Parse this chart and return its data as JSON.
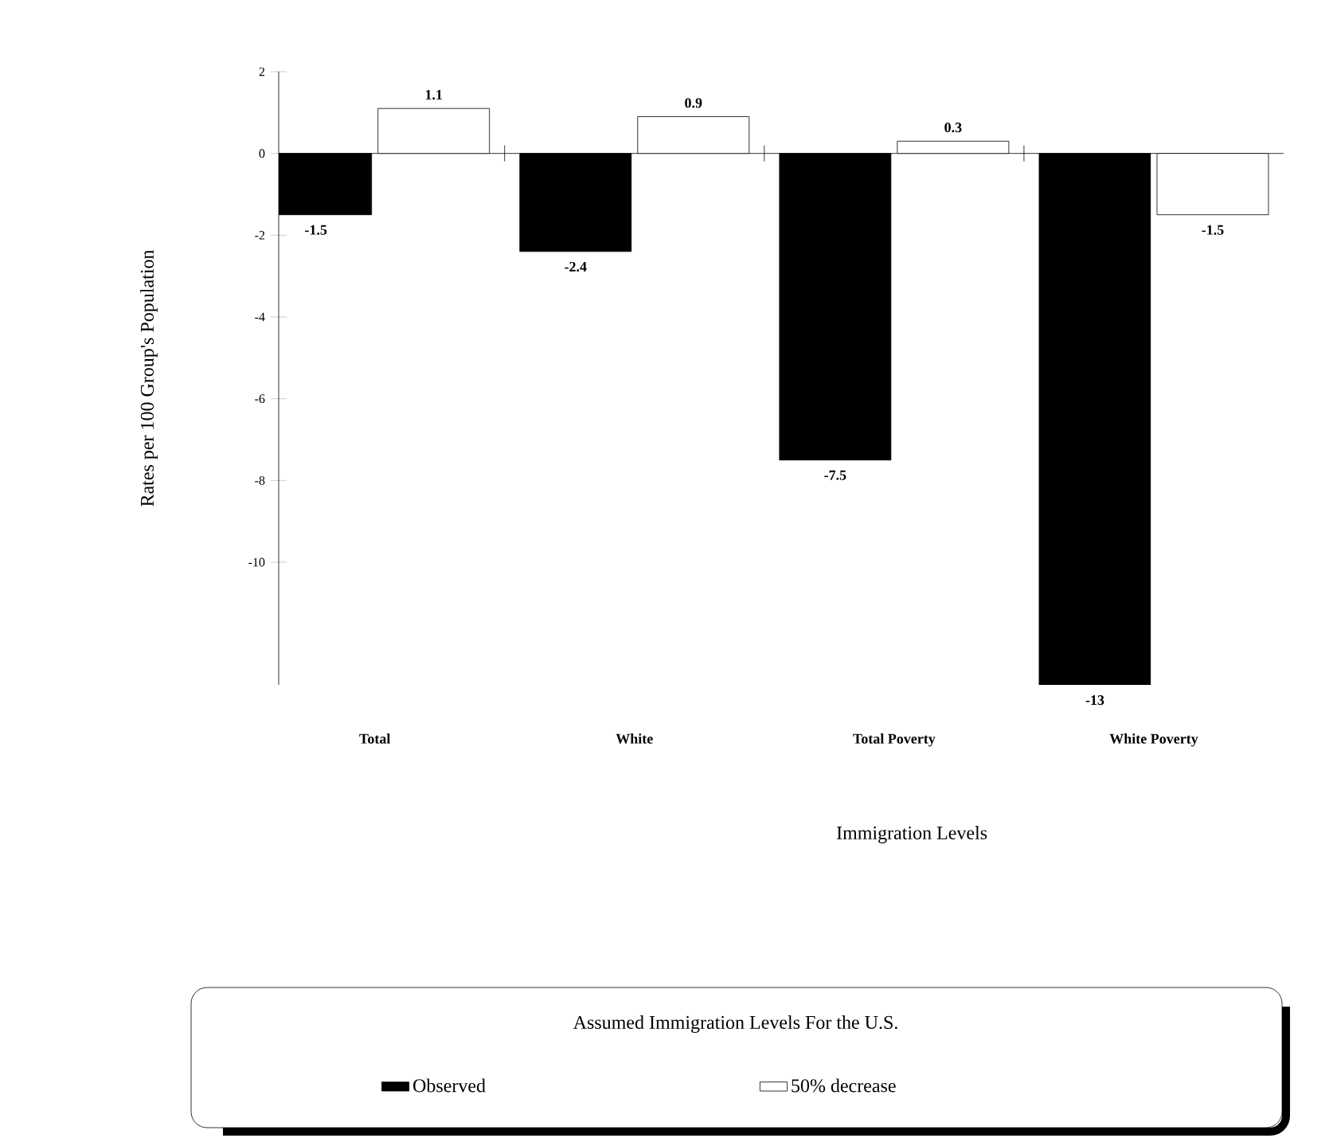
{
  "chart_data": {
    "type": "bar",
    "xlabel": "Immigration Levels",
    "ylabel": "Rates per 100 Group's Population",
    "legend_title": "Assumed Immigration Levels For the U.S.",
    "legend": "bottom",
    "categories": [
      "Total",
      "White",
      "Total Poverty",
      "White Poverty"
    ],
    "series": [
      {
        "name": "Observed",
        "color": "#000000",
        "values": [
          -1.5,
          -2.4,
          -7.5,
          -13
        ],
        "value_labels": [
          "-1.5",
          "-2.4",
          "-7.5",
          "-13"
        ]
      },
      {
        "name": "50% decrease",
        "color": "#ffffff",
        "values": [
          1.1,
          0.9,
          0.3,
          -1.5
        ],
        "value_labels": [
          "1.1",
          "0.9",
          "0.3",
          "-1.5"
        ]
      }
    ],
    "ylim": [
      -13,
      2
    ],
    "yticks": [
      -10,
      -8,
      -6,
      -4,
      -2,
      0,
      2
    ]
  }
}
